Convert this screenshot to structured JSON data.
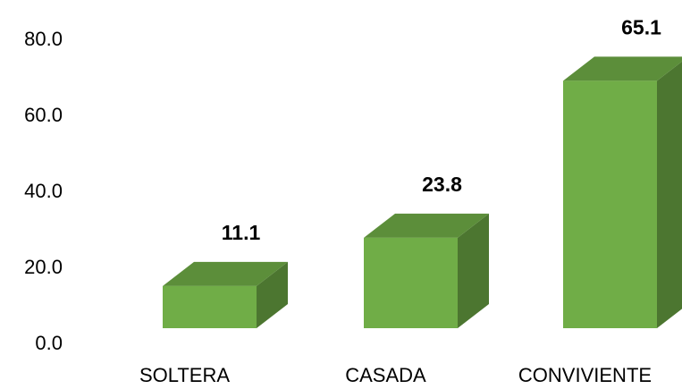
{
  "chart_data": {
    "type": "bar3d",
    "categories": [
      "SOLTERA",
      "CASADA",
      "CONVIVIENTE"
    ],
    "values": [
      11.1,
      23.8,
      65.1
    ],
    "color": "#70ad47",
    "ylim": [
      0,
      80
    ],
    "yticks": [
      {
        "value": 0,
        "label": "0.0"
      },
      {
        "value": 20,
        "label": "20.0"
      },
      {
        "value": 40,
        "label": "40.0"
      },
      {
        "value": 60,
        "label": "60.0"
      },
      {
        "value": 80,
        "label": "80.0"
      }
    ],
    "grid": false
  }
}
